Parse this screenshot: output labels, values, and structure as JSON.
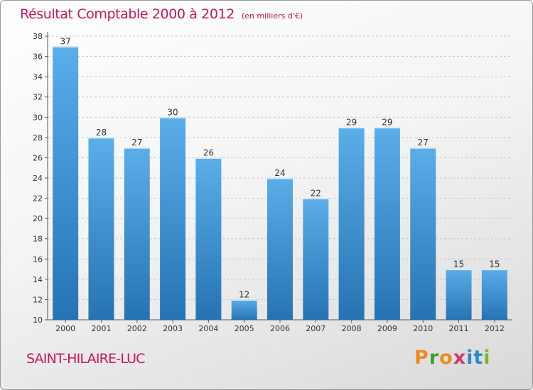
{
  "title": "Résultat Comptable 2000 à 2012",
  "subtitle": "(en milliers d'€)",
  "town": "SAINT-HILAIRE-LUC",
  "logo": {
    "letters": [
      "P",
      "r",
      "o",
      "x",
      "i",
      "t",
      "i"
    ],
    "colors": [
      "#f08a1a",
      "#3a9e3a",
      "#f08a1a",
      "#d03a6a",
      "#2a8acb",
      "#2a8acb",
      "#7ab82a"
    ]
  },
  "colors": {
    "bar": "#3a8fd0",
    "bar_light": "#5aaeea",
    "bar_dark": "#2673b3",
    "accent": "#c8175a",
    "grid": "#c8c8c8"
  },
  "chart_data": {
    "type": "bar",
    "title": "Résultat Comptable 2000 à 2012",
    "unit": "(en milliers d'€)",
    "categories": [
      "2000",
      "2001",
      "2002",
      "2003",
      "2004",
      "2005",
      "2006",
      "2007",
      "2008",
      "2009",
      "2010",
      "2011",
      "2012"
    ],
    "values": [
      37,
      28,
      27,
      30,
      26,
      12,
      24,
      22,
      29,
      29,
      27,
      15,
      15
    ],
    "value_labels": [
      "37",
      "28",
      "27",
      "30",
      "26",
      "12",
      "24",
      "22",
      "29",
      "29",
      "27",
      "15",
      "15"
    ],
    "yticks": [
      "10",
      "12",
      "14",
      "16",
      "18",
      "20",
      "22",
      "24",
      "26",
      "28",
      "30",
      "32",
      "34",
      "36",
      "38"
    ],
    "ylim": [
      10,
      38
    ],
    "grid": true,
    "xlabel": "",
    "ylabel": ""
  }
}
